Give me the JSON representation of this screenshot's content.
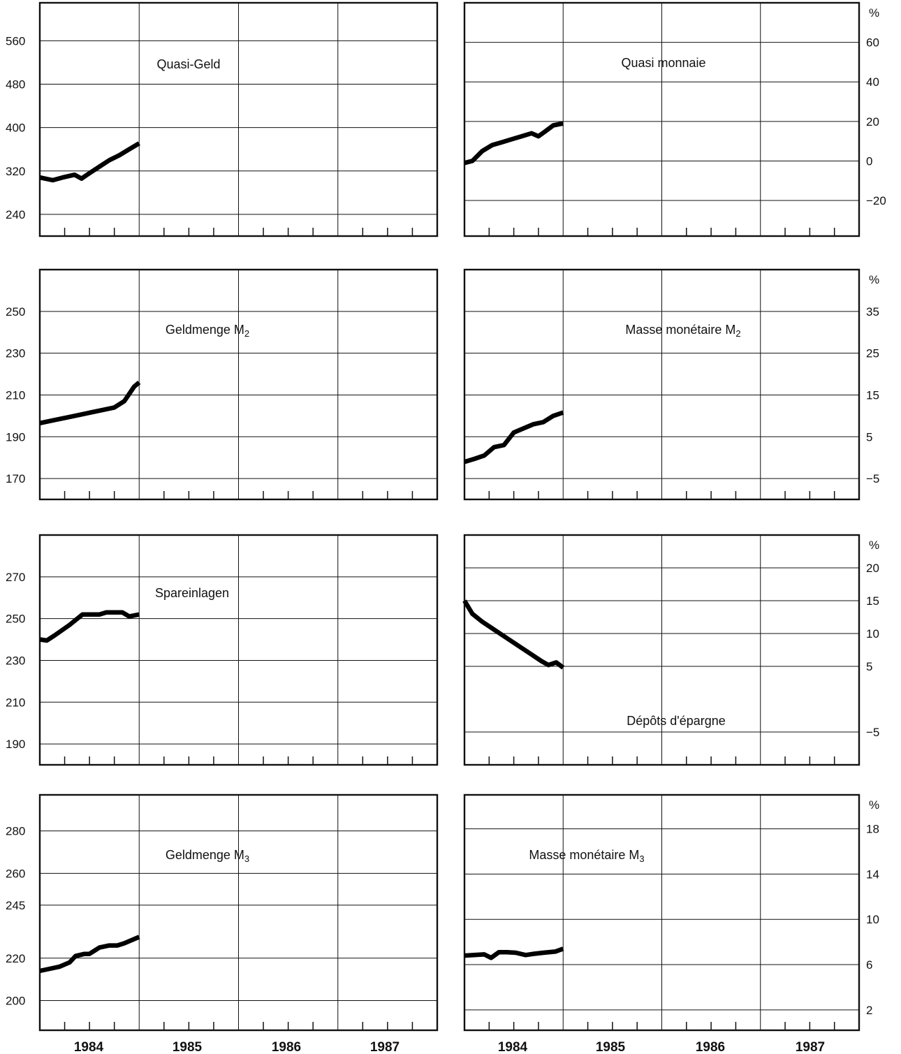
{
  "x_axis": {
    "years": [
      "1984",
      "1985",
      "1986",
      "1987"
    ]
  },
  "chart_data": [
    {
      "type": "line",
      "title": "Quasi-Geld",
      "side": "left",
      "unit": "",
      "xlim": [
        1983.5,
        1987.5
      ],
      "ylim": [
        200,
        630
      ],
      "grid": true,
      "yticks": [
        240,
        320,
        400,
        480,
        560
      ],
      "series": [
        {
          "x": [
            1983.5,
            1983.63,
            1983.73,
            1983.85,
            1983.92,
            1984.0,
            1984.1,
            1984.2,
            1984.3,
            1984.4,
            1984.5
          ],
          "values": [
            308,
            303,
            308,
            313,
            306,
            316,
            328,
            340,
            349,
            360,
            371
          ]
        }
      ]
    },
    {
      "type": "line",
      "title": "Quasi monnaie",
      "side": "right",
      "unit": "%",
      "xlim": [
        1983.5,
        1987.5
      ],
      "ylim": [
        -38,
        80
      ],
      "grid": true,
      "yticks": [
        -20,
        0,
        20,
        40,
        60
      ],
      "series": [
        {
          "x": [
            1983.5,
            1983.58,
            1983.68,
            1983.78,
            1983.88,
            1983.98,
            1984.08,
            1984.18,
            1984.25,
            1984.32,
            1984.4,
            1984.5
          ],
          "values": [
            -1,
            0,
            5,
            8,
            9.5,
            11,
            12.5,
            14,
            12.5,
            15,
            18,
            19
          ]
        }
      ]
    },
    {
      "type": "line",
      "title": "Geldmenge M2",
      "side": "left",
      "unit": "",
      "xlim": [
        1983.5,
        1987.5
      ],
      "ylim": [
        160,
        270
      ],
      "grid": true,
      "yticks": [
        170,
        190,
        210,
        230,
        250
      ],
      "series": [
        {
          "x": [
            1983.5,
            1983.65,
            1983.8,
            1983.95,
            1984.1,
            1984.25,
            1984.35,
            1984.45,
            1984.5
          ],
          "values": [
            196.5,
            198,
            199.5,
            201,
            202.5,
            204,
            207,
            214,
            216
          ]
        }
      ]
    },
    {
      "type": "line",
      "title": "Masse monétaire M2",
      "side": "right",
      "unit": "%",
      "xlim": [
        1983.5,
        1987.5
      ],
      "ylim": [
        -10,
        45
      ],
      "grid": true,
      "yticks": [
        -5,
        5,
        15,
        25,
        35
      ],
      "series": [
        {
          "x": [
            1983.5,
            1983.6,
            1983.7,
            1983.8,
            1983.9,
            1984.0,
            1984.1,
            1984.2,
            1984.3,
            1984.4,
            1984.5
          ],
          "values": [
            -1,
            -0.3,
            0.5,
            2.5,
            3,
            6,
            7,
            8,
            8.5,
            10,
            10.8
          ]
        }
      ]
    },
    {
      "type": "line",
      "title": "Spareinlagen",
      "side": "left",
      "unit": "",
      "xlim": [
        1983.5,
        1987.5
      ],
      "ylim": [
        180,
        290
      ],
      "grid": true,
      "yticks": [
        190,
        210,
        230,
        250,
        270
      ],
      "series": [
        {
          "x": [
            1983.5,
            1983.57,
            1983.65,
            1983.8,
            1983.93,
            1984.0,
            1984.1,
            1984.17,
            1984.25,
            1984.33,
            1984.4,
            1984.5
          ],
          "values": [
            240,
            239.5,
            242,
            247,
            252,
            252,
            252,
            253,
            253,
            253,
            251,
            252
          ]
        }
      ]
    },
    {
      "type": "line",
      "title": "Dépôts d'épargne",
      "side": "right",
      "unit": "%",
      "xlim": [
        1983.5,
        1987.5
      ],
      "ylim": [
        -10,
        25
      ],
      "grid": true,
      "yticks": [
        -5,
        5,
        10,
        15,
        20
      ],
      "series": [
        {
          "x": [
            1983.5,
            1983.58,
            1983.68,
            1983.78,
            1983.88,
            1983.98,
            1984.08,
            1984.18,
            1984.28,
            1984.35,
            1984.43,
            1984.5
          ],
          "values": [
            15,
            13,
            11.8,
            10.8,
            9.8,
            8.8,
            7.8,
            6.8,
            5.8,
            5.2,
            5.6,
            4.8
          ]
        }
      ]
    },
    {
      "type": "line",
      "title": "Geldmenge M3",
      "side": "left",
      "unit": "",
      "xlim": [
        1983.5,
        1987.5
      ],
      "ylim": [
        186,
        297
      ],
      "grid": true,
      "yticks": [
        200,
        220,
        245,
        260,
        280
      ],
      "series": [
        {
          "x": [
            1983.5,
            1983.6,
            1983.7,
            1983.8,
            1983.86,
            1983.95,
            1984.0,
            1984.1,
            1984.2,
            1984.28,
            1984.35,
            1984.5
          ],
          "values": [
            214,
            215,
            216,
            218,
            221,
            222,
            222,
            225,
            226,
            226,
            227,
            230
          ]
        }
      ]
    },
    {
      "type": "line",
      "title": "Masse monétaire M3",
      "side": "right",
      "unit": "%",
      "xlim": [
        1983.5,
        1987.5
      ],
      "ylim": [
        0.2,
        21
      ],
      "grid": true,
      "yticks": [
        2,
        6,
        10,
        14,
        18
      ],
      "series": [
        {
          "x": [
            1983.5,
            1983.6,
            1983.7,
            1983.77,
            1983.85,
            1983.93,
            1984.02,
            1984.12,
            1984.2,
            1984.3,
            1984.42,
            1984.5
          ],
          "values": [
            6.8,
            6.85,
            6.9,
            6.6,
            7.1,
            7.1,
            7.05,
            6.85,
            6.95,
            7.05,
            7.15,
            7.4
          ]
        }
      ]
    }
  ]
}
